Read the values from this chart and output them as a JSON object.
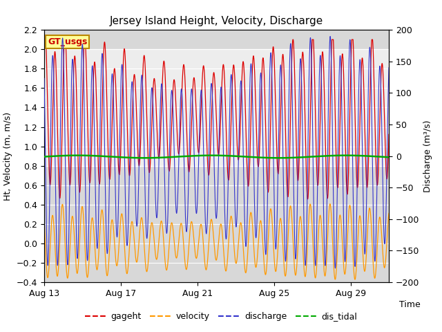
{
  "title": "Jersey Island Height, Velocity, Discharge",
  "ylabel_left": "Ht, Velocity (m, m/s)",
  "ylabel_right": "Discharge (m³/s)",
  "xlabel": "Time",
  "xlim_days": [
    0,
    18
  ],
  "ylim_left": [
    -0.4,
    2.2
  ],
  "ylim_right": [
    -200,
    200
  ],
  "xtick_labels": [
    "Aug 13",
    "Aug 17",
    "Aug 21",
    "Aug 25",
    "Aug 29"
  ],
  "xtick_positions": [
    0,
    4,
    8,
    12,
    16
  ],
  "shaded_region": [
    0.8,
    2.0
  ],
  "gageht_color": "#dd0000",
  "velocity_color": "#ff9900",
  "discharge_color": "#3333cc",
  "dis_tidal_color": "#00aa00",
  "legend_labels": [
    "gageht",
    "velocity",
    "discharge",
    "dis_tidal"
  ],
  "gt_usgs_label": "GT_usgs",
  "gt_usgs_bg": "#ffff99",
  "gt_usgs_border": "#bb8800",
  "background_plot": "#d8d8d8",
  "tidal_period_hours": 12.42,
  "n_days": 18,
  "dt_hours": 0.1,
  "spring_neap_period_days": 14.77,
  "spring_neap_amp": 0.25,
  "gageht_mean": 1.3,
  "gageht_amp": 0.62,
  "velocity_amp": 0.28,
  "discharge_amp": 140,
  "dis_tidal_value": 0.0,
  "figure_width": 6.4,
  "figure_height": 4.8,
  "dpi": 100
}
